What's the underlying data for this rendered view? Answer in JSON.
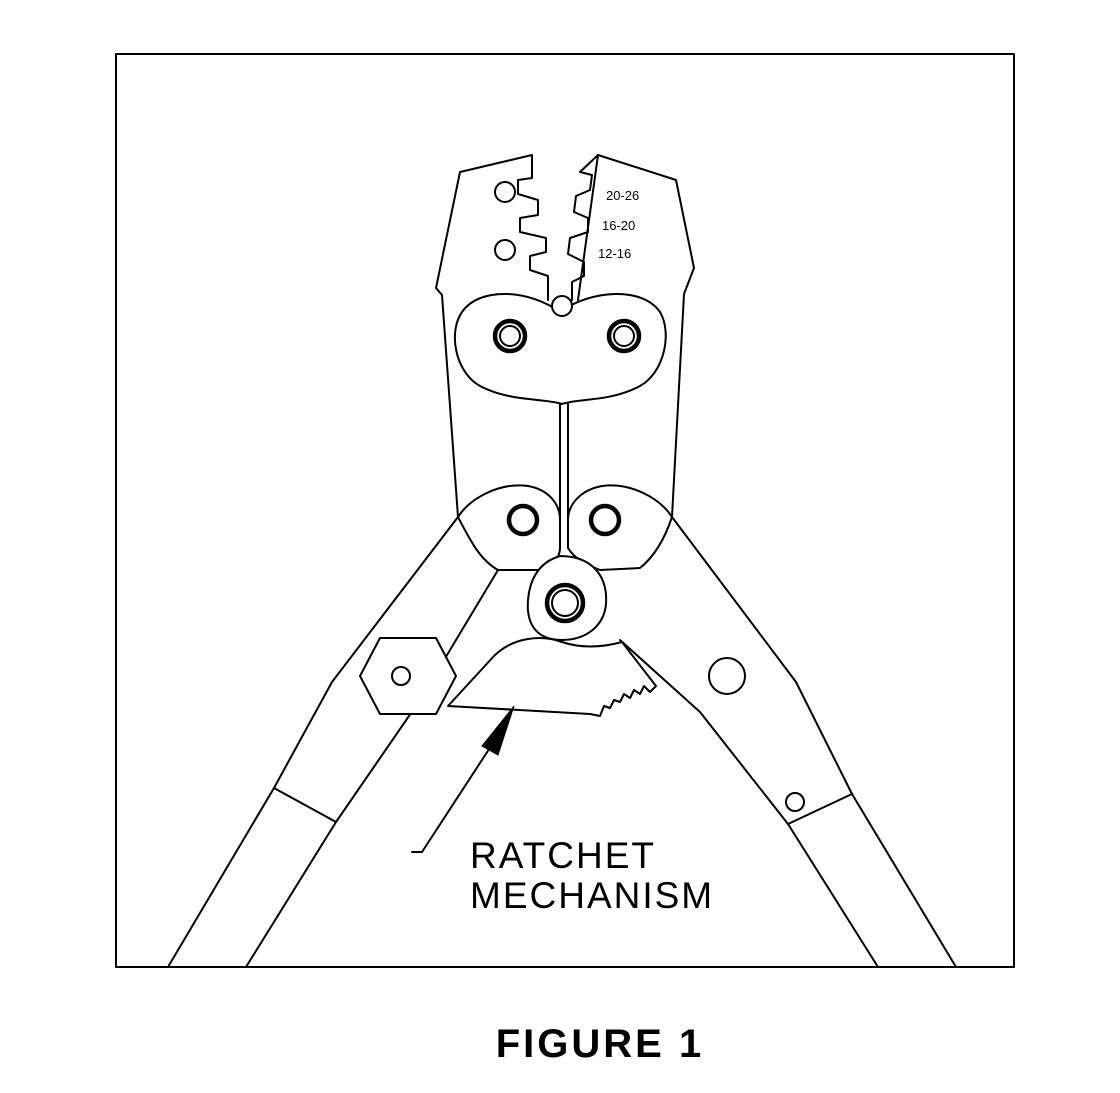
{
  "figure": {
    "caption": "FIGURE 1"
  },
  "die_labels": [
    "20-26",
    "16-20",
    "12-16"
  ],
  "callout": {
    "line1": "RATCHET",
    "line2": "MECHANISM"
  }
}
